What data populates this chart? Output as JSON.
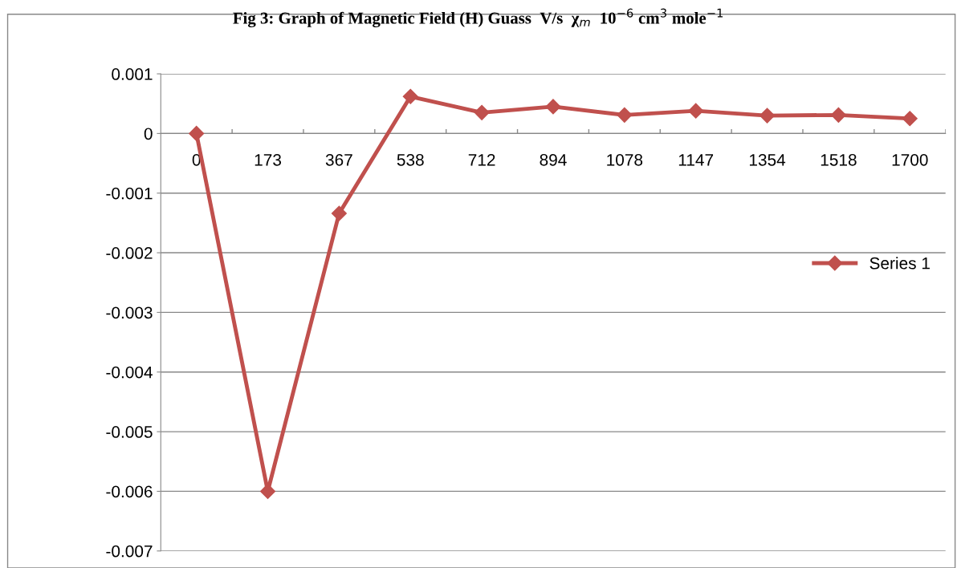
{
  "chart_data": {
    "type": "line",
    "title": "Fig 3: Graph of Magnetic Field (H) Guass  V/s  χ$_{m}$  10$^{−6}$ cm$^{3}$ mole$^{−1}$",
    "categories": [
      "0",
      "173",
      "367",
      "538",
      "712",
      "894",
      "1078",
      "1147",
      "1354",
      "1518",
      "1700"
    ],
    "series": [
      {
        "name": "Series 1",
        "color": "#c0504d",
        "values": [
          0,
          -0.006,
          -0.00134,
          0.00062,
          0.00035,
          0.00045,
          0.00031,
          0.00038,
          0.0003,
          0.00031,
          0.00025
        ]
      }
    ],
    "ylim": [
      -0.007,
      0.001
    ],
    "yticks": [
      -0.007,
      -0.006,
      -0.005,
      -0.004,
      -0.003,
      -0.002,
      -0.001,
      0,
      0.001
    ],
    "grid": "y",
    "legend": "right",
    "marker": "diamond",
    "line_style": "solid"
  }
}
